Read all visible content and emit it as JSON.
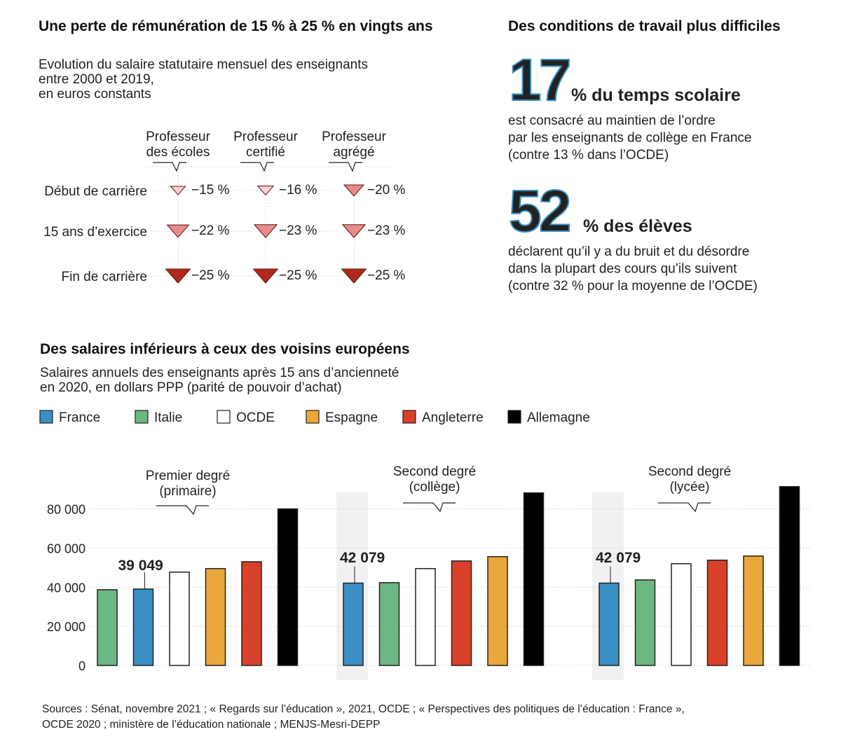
{
  "chart_data": [
    {
      "type": "triangle",
      "title": "Une perte de rémunération de 15 % à 25 % en vingts ans",
      "subtitle": [
        "Evolution du salaire statutaire mensuel des enseignants",
        "entre 2000 et 2019,",
        "en euros constants"
      ],
      "categories": [
        [
          "Professeur",
          "des écoles"
        ],
        [
          "Professeur",
          "certifié"
        ],
        [
          "Professeur",
          "agrégé"
        ]
      ],
      "series": [
        {
          "name": "Début de carrière",
          "values": [
            -15,
            -16,
            -20
          ],
          "value_labels": [
            "−15 %",
            "−16 %",
            "−20 %"
          ],
          "colors": [
            "#f5d0d0",
            "#f5d0d0",
            "#e58a8a"
          ]
        },
        {
          "name": "15 ans d’exercice",
          "values": [
            -22,
            -23,
            -23
          ],
          "value_labels": [
            "−22 %",
            "−23 %",
            "−23 %"
          ],
          "colors": [
            "#e88b8b",
            "#e88b8b",
            "#e88b8b"
          ]
        },
        {
          "name": "Fin de carrière",
          "values": [
            -25,
            -25,
            -25
          ],
          "value_labels": [
            "−25 %",
            "−25 %",
            "−25 %"
          ],
          "colors": [
            "#b0281c",
            "#b0281c",
            "#b0281c"
          ]
        }
      ]
    },
    {
      "type": "bar",
      "title": "Des salaires inférieurs à ceux des voisins européens",
      "subtitle": [
        "Salaires annuels des enseignants après 15 ans d’ancienneté",
        "en 2020, en dollars PPP (parité de pouvoir d’achat)"
      ],
      "legend": [
        {
          "name": "France",
          "color": "#3a8fc4"
        },
        {
          "name": "Italie",
          "color": "#6db782"
        },
        {
          "name": "OCDE",
          "color": "#ffffff"
        },
        {
          "name": "Espagne",
          "color": "#eaa83a"
        },
        {
          "name": "Angleterre",
          "color": "#d9402b"
        },
        {
          "name": "Allemagne",
          "color": "#000000"
        }
      ],
      "ylim": [
        0,
        92000
      ],
      "yticks": [
        0,
        {
          "value": 20000,
          "label": "20 000"
        },
        {
          "value": 40000,
          "label": "40 000"
        },
        {
          "value": 60000,
          "label": "60 000"
        },
        {
          "value": 80000,
          "label": "80 000"
        }
      ],
      "grid": true,
      "panels": [
        {
          "title": [
            "Premier degré",
            "(primaire)"
          ],
          "bars": [
            {
              "series": "Italie",
              "value": 38700
            },
            {
              "series": "France",
              "value": 39049,
              "value_label": "39 049"
            },
            {
              "series": "OCDE",
              "value": 47700
            },
            {
              "series": "Espagne",
              "value": 49500
            },
            {
              "series": "Angleterre",
              "value": 53000
            },
            {
              "series": "Allemagne",
              "value": 80000
            }
          ]
        },
        {
          "title": [
            "Second degré",
            "(collège)"
          ],
          "bars": [
            {
              "series": "France",
              "value": 42079,
              "value_label": "42 079"
            },
            {
              "series": "Italie",
              "value": 42300
            },
            {
              "series": "OCDE",
              "value": 49500
            },
            {
              "series": "Angleterre",
              "value": 53400
            },
            {
              "series": "Espagne",
              "value": 55600
            },
            {
              "series": "Allemagne",
              "value": 88200
            }
          ]
        },
        {
          "title": [
            "Second degré",
            "(lycée)"
          ],
          "bars": [
            {
              "series": "France",
              "value": 42079,
              "value_label": "42 079"
            },
            {
              "series": "Italie",
              "value": 43700
            },
            {
              "series": "OCDE",
              "value": 52000
            },
            {
              "series": "Angleterre",
              "value": 53800
            },
            {
              "series": "Espagne",
              "value": 55900
            },
            {
              "series": "Allemagne",
              "value": 91400
            }
          ]
        }
      ]
    }
  ],
  "conditions": {
    "title": "Des conditions de travail  plus difficiles",
    "items": [
      {
        "value": 17,
        "headline": "% du temps scolaire",
        "lines": [
          "est consacré au maintien de l’ordre",
          "par les enseignants  de collège  en France",
          "(contre 13 % dans l’OCDE)"
        ]
      },
      {
        "value": 52,
        "headline": "% des élèves",
        "lines": [
          "déclarent qu’il y a du bruit  et du désordre",
          "dans la plupart  des cours qu’ils suivent",
          "(contre 32 %  pour la moyenne de l’OCDE)"
        ]
      }
    ]
  },
  "sources": [
    "Sources : Sénat, novembre 2021 ; « Regards sur l’éducation », 2021, OCDE ; « Perspectives des politiques de l’éducation : France »,",
    "OCDE 2020 ; ministère de l’éducation nationale ; MENJS-Mesri-DEPP"
  ]
}
